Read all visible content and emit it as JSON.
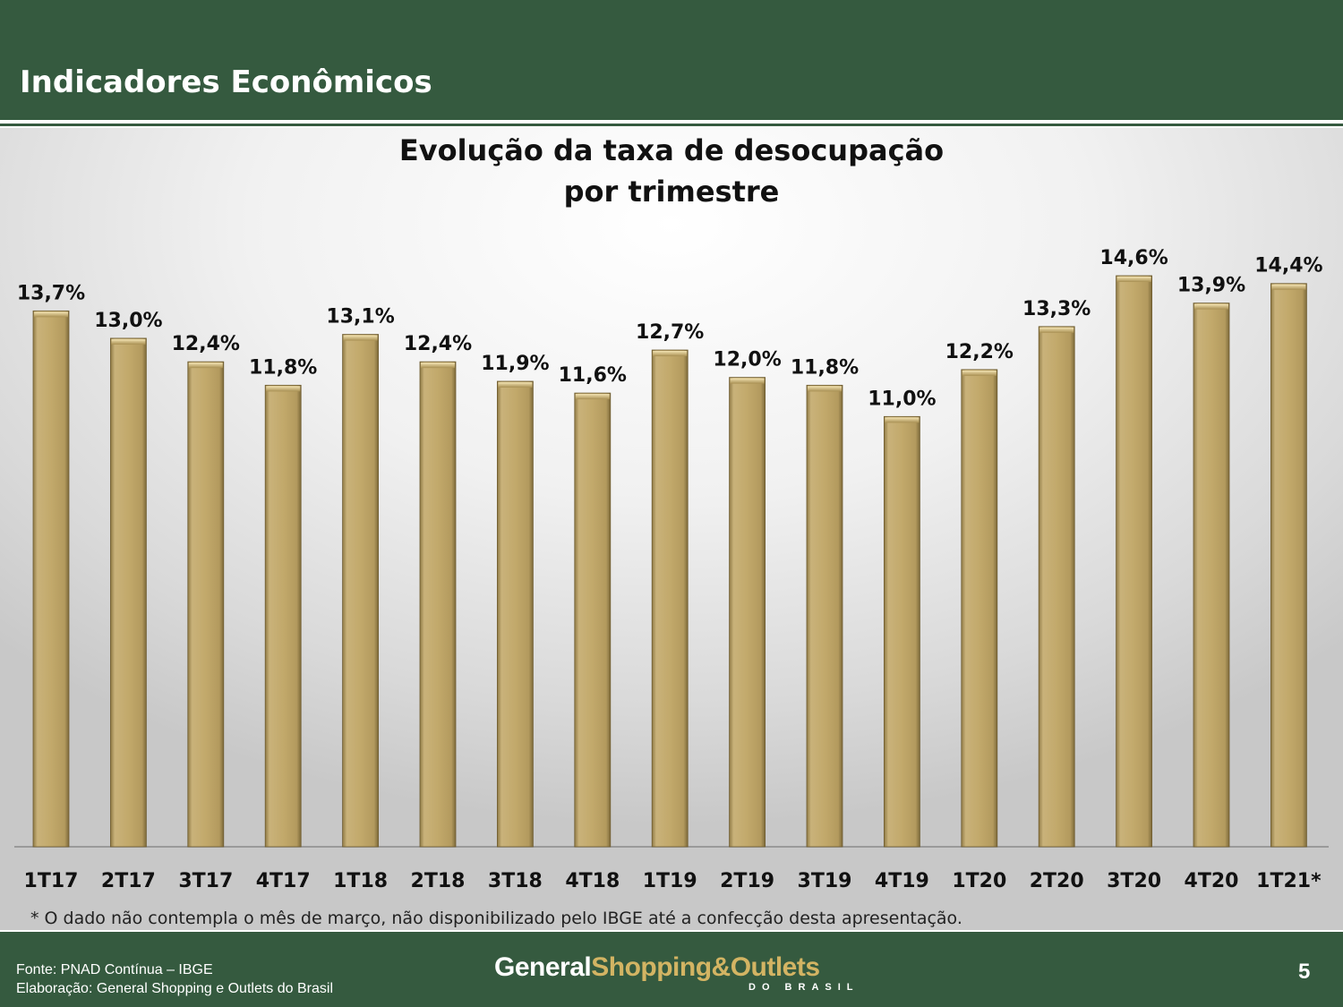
{
  "header": {
    "title": "Indicadores Econômicos"
  },
  "chart_data": {
    "type": "bar",
    "title_line1": "Evolução da taxa de desocupação",
    "title_line2": "por trimestre",
    "categories": [
      "1T17",
      "2T17",
      "3T17",
      "4T17",
      "1T18",
      "2T18",
      "3T18",
      "4T18",
      "1T19",
      "2T19",
      "3T19",
      "4T19",
      "1T20",
      "2T20",
      "3T20",
      "4T20",
      "1T21*"
    ],
    "values": [
      13.7,
      13.0,
      12.4,
      11.8,
      13.1,
      12.4,
      11.9,
      11.6,
      12.7,
      12.0,
      11.8,
      11.0,
      12.2,
      13.3,
      14.6,
      13.9,
      14.4
    ],
    "labels": [
      "13,7%",
      "13,0%",
      "12,4%",
      "11,8%",
      "13,1%",
      "12,4%",
      "11,9%",
      "11,6%",
      "12,7%",
      "12,0%",
      "11,8%",
      "11,0%",
      "12,2%",
      "13,3%",
      "14,6%",
      "13,9%",
      "14,4%"
    ],
    "bar_color": "#c2a96b",
    "grid": false
  },
  "footnote": "* O dado não contempla o mês de março, não disponibilizado pelo IBGE até a confecção desta apresentação.",
  "footer": {
    "source_line1": "Fonte: PNAD Contínua – IBGE",
    "source_line2": "Elaboração: General Shopping e Outlets do Brasil",
    "logo_part1": "General",
    "logo_part2": "Shopping&Outlets",
    "logo_sub": "DO BRASIL",
    "page_number": "5"
  }
}
